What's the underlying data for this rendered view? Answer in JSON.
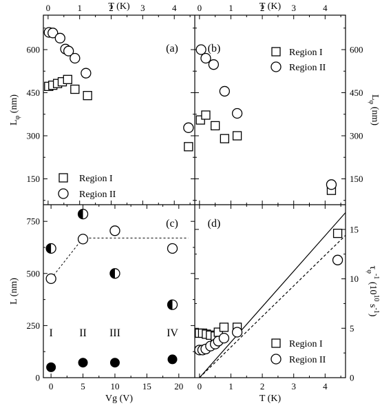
{
  "chart_data": [
    {
      "panel": "(a)",
      "type": "scatter",
      "top_xlabel": "T (K)",
      "top_xticks": [
        "0",
        "1",
        "2",
        "3",
        "4"
      ],
      "xlim": [
        -0.15,
        4.65
      ],
      "ylabel_main": "L",
      "ylabel_sub": "φ",
      "ylabel_unit": " (nm)",
      "ylim": [
        60,
        720
      ],
      "yticks": [
        "150",
        "300",
        "450",
        "600"
      ],
      "legend": {
        "placement": "bottom-left",
        "entries": [
          "Region I",
          "Region II"
        ]
      },
      "series": [
        {
          "name": "Region I",
          "marker": "square",
          "x": [
            0.02,
            0.15,
            0.3,
            0.45,
            0.62,
            0.85,
            1.25,
            4.45
          ],
          "y": [
            472,
            476,
            482,
            488,
            496,
            462,
            440,
            262
          ]
        },
        {
          "name": "Region II",
          "marker": "circle",
          "x": [
            0.03,
            0.15,
            0.38,
            0.55,
            0.65,
            0.85,
            1.2,
            4.45
          ],
          "y": [
            660,
            658,
            640,
            602,
            595,
            570,
            518,
            328
          ]
        }
      ]
    },
    {
      "panel": "(b)",
      "type": "scatter",
      "top_xlabel": "T (K)",
      "top_xticks": [
        "0",
        "1",
        "2",
        "3",
        "4"
      ],
      "xlim": [
        -0.15,
        4.65
      ],
      "ylabel_main": "L",
      "ylabel_sub": "φ",
      "ylabel_unit": " (nm)",
      "ylim": [
        60,
        720
      ],
      "yticks": [
        "150",
        "300",
        "450",
        "600"
      ],
      "legend": {
        "placement": "top-right",
        "entries": [
          "Region I",
          "Region II"
        ]
      },
      "series": [
        {
          "name": "Region I",
          "marker": "square",
          "x": [
            0.03,
            0.2,
            0.5,
            0.8,
            1.2,
            4.2
          ],
          "y": [
            355,
            372,
            335,
            290,
            300,
            110
          ]
        },
        {
          "name": "Region II",
          "marker": "circle",
          "x": [
            0.05,
            0.2,
            0.45,
            0.8,
            1.2,
            4.2
          ],
          "y": [
            600,
            570,
            548,
            455,
            378,
            130
          ]
        }
      ]
    },
    {
      "panel": "(c)",
      "type": "scatter",
      "xlabel": "Vg (V)",
      "xticks": [
        "0",
        "5",
        "10",
        "15",
        "20"
      ],
      "xlim": [
        -1.2,
        22.5
      ],
      "ylabel": "L (nm)",
      "yticks": [
        "0",
        "250",
        "500",
        "750"
      ],
      "ylim": [
        0,
        830
      ],
      "regions": [
        "I",
        "II",
        "III",
        "IV"
      ],
      "series": [
        {
          "marker": "open-circle",
          "x": [
            0,
            5,
            10,
            19
          ],
          "y": [
            475,
            665,
            705,
            620
          ]
        },
        {
          "marker": "half-filled-circle",
          "x": [
            0,
            5,
            10,
            19
          ],
          "y": [
            620,
            785,
            500,
            350
          ]
        },
        {
          "marker": "filled-circle",
          "x": [
            0,
            5,
            10,
            19
          ],
          "y": [
            50,
            72,
            72,
            88
          ]
        }
      ],
      "guide_lines": {
        "x": [
          0,
          5,
          21.5
        ],
        "y": [
          475,
          670,
          670
        ],
        "style": "dashed"
      }
    },
    {
      "panel": "(d)",
      "type": "scatter",
      "xlabel": "T (K)",
      "xticks": [
        "0",
        "1",
        "2",
        "3",
        "4"
      ],
      "xlim": [
        -0.15,
        4.65
      ],
      "ylabel_sym": "τ",
      "ylabel_sub": "φ",
      "ylabel_sup": "-1",
      "ylabel_unit": " (10",
      "ylabel_unit_sup": "10",
      "ylabel_unit2": " s",
      "ylabel_unit2_sup": "-1",
      "ylabel_close": ")",
      "yticks": [
        "0",
        "5",
        "10",
        "15"
      ],
      "ylim": [
        0,
        17.5
      ],
      "legend": {
        "placement": "bottom-right",
        "entries": [
          "Region I",
          "Region II"
        ]
      },
      "series": [
        {
          "name": "Region I",
          "marker": "square",
          "x": [
            0.0,
            0.1,
            0.22,
            0.35,
            0.5,
            0.6,
            0.78,
            1.2,
            4.4
          ],
          "y": [
            4.5,
            4.5,
            4.4,
            4.3,
            4.2,
            4.6,
            5.1,
            5.1,
            14.6
          ]
        },
        {
          "name": "Region II",
          "marker": "circle",
          "x": [
            0.0,
            0.1,
            0.2,
            0.35,
            0.5,
            0.6,
            0.78,
            1.2,
            4.4
          ],
          "y": [
            2.8,
            2.8,
            2.9,
            3.2,
            3.4,
            3.7,
            4.0,
            4.6,
            11.9
          ]
        }
      ],
      "lines": [
        {
          "style": "solid",
          "x": [
            0,
            4.65
          ],
          "y": [
            0,
            16.7
          ]
        },
        {
          "style": "dashed",
          "x": [
            0,
            4.65
          ],
          "y": [
            0,
            14.4
          ]
        }
      ]
    }
  ]
}
